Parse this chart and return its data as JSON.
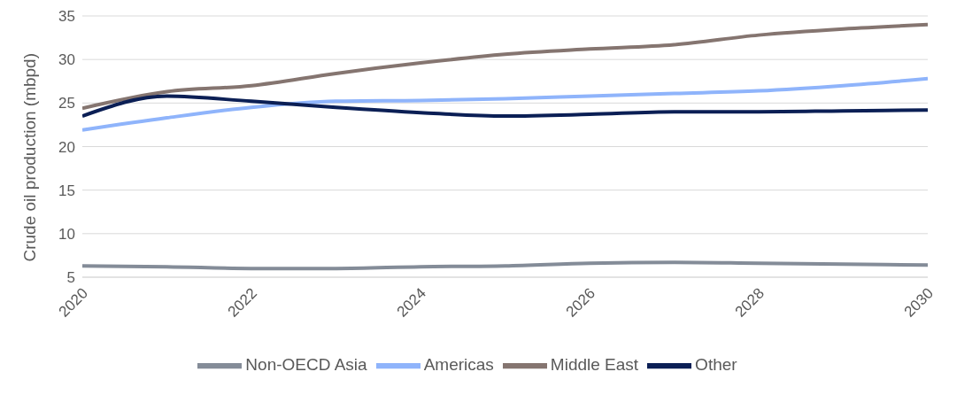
{
  "chart_data": {
    "type": "line",
    "ylabel": "Crude oil production (mbpd)",
    "x": [
      2020,
      2021,
      2022,
      2023,
      2024,
      2025,
      2026,
      2027,
      2028,
      2029,
      2030
    ],
    "series": [
      {
        "name": "Non-OECD Asia",
        "color": "#848c98",
        "values": [
          6.3,
          6.2,
          6.0,
          6.0,
          6.2,
          6.3,
          6.6,
          6.7,
          6.6,
          6.5,
          6.4
        ]
      },
      {
        "name": "Americas",
        "color": "#8fb4fb",
        "values": [
          21.9,
          23.3,
          24.5,
          25.2,
          25.3,
          25.5,
          25.8,
          26.1,
          26.4,
          27.0,
          27.8
        ]
      },
      {
        "name": "Middle East",
        "color": "#857570",
        "values": [
          24.4,
          26.3,
          27.0,
          28.4,
          29.6,
          30.6,
          31.2,
          31.7,
          32.8,
          33.5,
          34.0
        ]
      },
      {
        "name": "Other",
        "color": "#0b1f55",
        "values": [
          23.5,
          25.8,
          25.2,
          24.5,
          23.9,
          23.5,
          23.7,
          24.0,
          24.0,
          24.1,
          24.2
        ]
      }
    ],
    "xlim": [
      2020,
      2030
    ],
    "xticks": [
      2020,
      2022,
      2024,
      2026,
      2028,
      2030
    ],
    "ylim": [
      5,
      35
    ],
    "yticks": [
      5,
      10,
      15,
      20,
      25,
      30,
      35
    ],
    "grid": "y",
    "legend": "bottom",
    "marker": "none",
    "line_style": "solid"
  }
}
